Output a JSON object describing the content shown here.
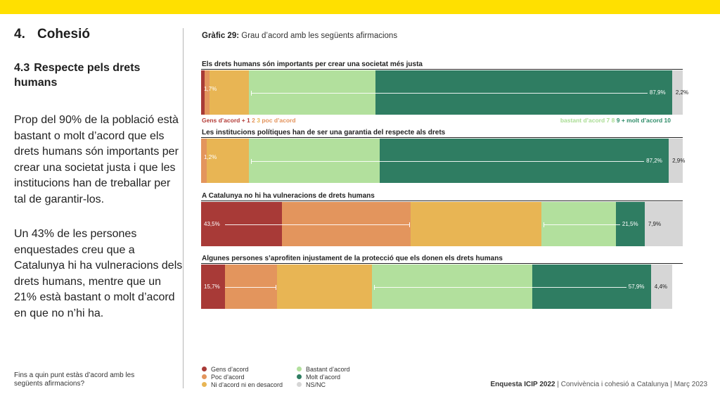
{
  "section": {
    "number": "4.",
    "title": "Cohesió"
  },
  "subsection": {
    "number": "4.3",
    "title": "Respecte pels drets humans"
  },
  "paragraphs": [
    "Prop del 90% de la població està bastant o molt d’acord que els drets humans són importants per crear una societat justa i que les institucions han de treballar per tal de garantir-los.",
    "Un 43% de les persones enquestades creu que a Catalunya hi ha vulneracions dels drets humans, mentre que un 21% està bastant o molt d’acord en que no n’hi ha."
  ],
  "footnote_question": "Fins a quin punt estàs d’acord amb les següents afirmacions?",
  "chart_title": {
    "label": "Gràfic 29:",
    "text": "Grau d’acord amb les següents afirmacions"
  },
  "scale": {
    "left_text": "Gens d’acord",
    "left_numbers": [
      {
        "t": "+ 1",
        "c": "#b33b36"
      },
      {
        "t": "2",
        "c": "#e3925a"
      },
      {
        "t": "3",
        "c": "#e8b553"
      },
      {
        "t": "poc d’acord",
        "c": "#e3925a"
      }
    ],
    "right_parts": [
      {
        "t": "bastant d’acord 7",
        "c": "#a9dc93"
      },
      {
        "t": "8",
        "c": "#a9dc93"
      },
      {
        "t": "9",
        "c": "#2e8c68"
      },
      {
        "t": "+ molt d’acord 10",
        "c": "#2e8c68"
      }
    ]
  },
  "colors": {
    "gens": "#a83a37",
    "poc": "#e3955d",
    "ni": "#e8b554",
    "bastant": "#b2e09d",
    "molt": "#2f7d62",
    "nsnc": "#d6d6d6"
  },
  "legend": [
    {
      "label": "Gens d’acord",
      "key": "gens"
    },
    {
      "label": "Poc d’acord",
      "key": "poc"
    },
    {
      "label": "Ni d’acord ni en desacord",
      "key": "ni"
    },
    {
      "label": "Bastant d’acord",
      "key": "bastant"
    },
    {
      "label": "Molt d’acord",
      "key": "molt"
    },
    {
      "label": "NS/NC",
      "key": "nsnc"
    }
  ],
  "source": {
    "bold": "Enquesta ICIP 2022",
    "rest": " | Convivència i cohesió a Catalunya | Març 2023"
  },
  "chart_data": {
    "type": "bar",
    "orientation": "horizontal-stacked",
    "title": "Gràfic 29: Grau d’acord amb les següents afirmacions",
    "xlim": [
      0,
      100
    ],
    "series_names": [
      "Gens d’acord",
      "Poc d’acord",
      "Ni d’acord ni en desacord",
      "Bastant d’acord",
      "Molt d’acord",
      "NS/NC"
    ],
    "rows": [
      {
        "label": "Els drets humans són importants per crear una societat més justa",
        "segments": [
          0.7,
          1.0,
          8.2,
          26.3,
          61.6,
          2.2
        ],
        "annotations": {
          "disagree_total": "1,7%",
          "agree_total": "87,9%",
          "nsnc": "2,2%"
        }
      },
      {
        "label": "Les institucions polítiques han de ser una garantia del respecte als drets",
        "segments": [
          0.0,
          1.2,
          8.7,
          27.2,
          60.0,
          2.9
        ],
        "annotations": {
          "disagree_total": "1,2%",
          "agree_total": "87,2%",
          "nsnc": "2,9%"
        }
      },
      {
        "label": "A Catalunya no hi ha vulneracions de drets humans",
        "segments": [
          16.8,
          26.7,
          27.1,
          15.5,
          6.0,
          7.9
        ],
        "annotations": {
          "disagree_total": "43,5%",
          "agree_total": "21,5%",
          "nsnc": "7,9%"
        }
      },
      {
        "label": "Algunes persones s’aprofiten injustament de la protecció que els donen els drets humans",
        "segments": [
          4.9,
          10.8,
          19.8,
          33.3,
          24.6,
          4.4
        ],
        "annotations": {
          "disagree_total": "15,7%",
          "agree_total": "57,9%",
          "nsnc": "4,4%"
        }
      }
    ]
  }
}
